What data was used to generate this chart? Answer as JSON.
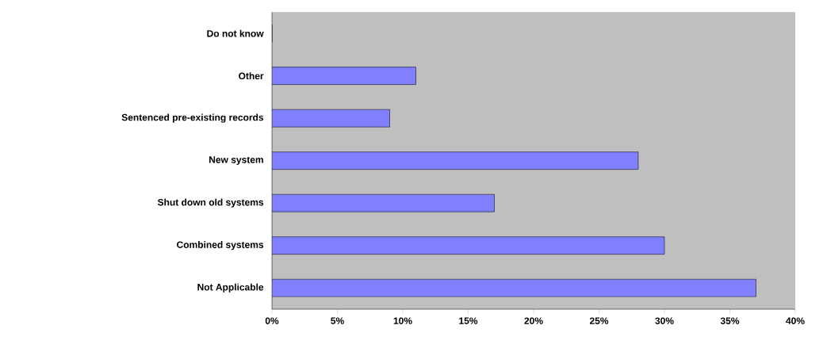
{
  "chart_data": {
    "type": "bar",
    "orientation": "horizontal",
    "categories": [
      "Do not know",
      "Other",
      "Sentenced pre-existing records",
      "New system",
      "Shut down old systems",
      "Combined systems",
      "Not Applicable"
    ],
    "values": [
      0,
      11,
      9,
      28,
      17,
      30,
      37
    ],
    "color": "#8080ff",
    "xlim": [
      0,
      40
    ],
    "xticks": [
      {
        "value": 0,
        "label": "0%"
      },
      {
        "value": 5,
        "label": "5%"
      },
      {
        "value": 10,
        "label": "10%"
      },
      {
        "value": 15,
        "label": "15%"
      },
      {
        "value": 20,
        "label": "20%"
      },
      {
        "value": 25,
        "label": "25%"
      },
      {
        "value": 30,
        "label": "30%"
      },
      {
        "value": 35,
        "label": "35%"
      },
      {
        "value": 40,
        "label": "40%"
      }
    ]
  }
}
